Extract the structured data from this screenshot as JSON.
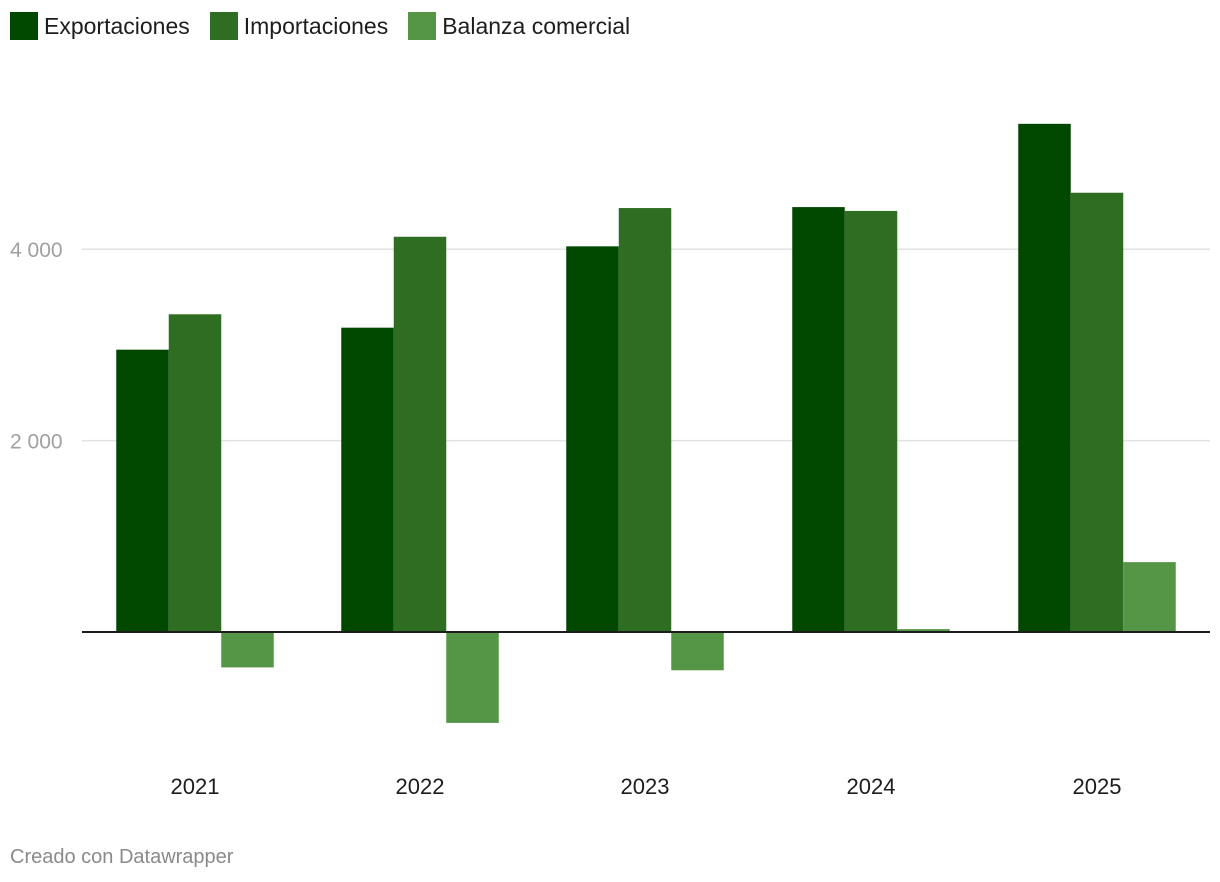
{
  "chart_data": {
    "type": "bar",
    "categories": [
      "2021",
      "2022",
      "2023",
      "2024",
      "2025"
    ],
    "series": [
      {
        "name": "Exportaciones",
        "color": "#004700",
        "values": [
          2950,
          3180,
          4030,
          4440,
          5310
        ]
      },
      {
        "name": "Importaciones",
        "color": "#2f6e22",
        "values": [
          3320,
          4130,
          4430,
          4400,
          4590
        ]
      },
      {
        "name": "Balanza comercial",
        "color": "#559546",
        "values": [
          -370,
          -950,
          -400,
          30,
          730
        ]
      }
    ],
    "yticks": [
      {
        "value": 2000,
        "label": "2 000"
      },
      {
        "value": 4000,
        "label": "4 000"
      }
    ],
    "ylim": [
      -1300,
      5800
    ],
    "grid": true,
    "legend": "top-left"
  },
  "footer": "Creado con Datawrapper"
}
